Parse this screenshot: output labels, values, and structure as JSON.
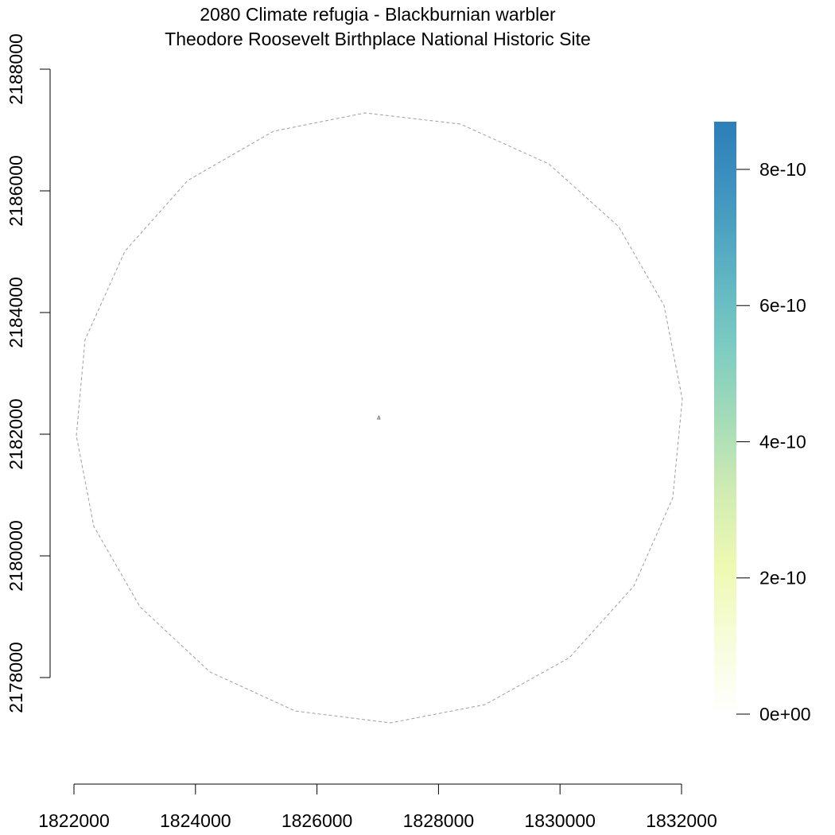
{
  "title": {
    "line1": "2080 Climate refugia - Blackburnian warbler",
    "line2": "Theodore Roosevelt Birthplace National Historic Site"
  },
  "x_axis": {
    "ticks": [
      1822000,
      1824000,
      1826000,
      1828000,
      1830000,
      1832000
    ],
    "tick_labels": [
      "1822000",
      "1824000",
      "1826000",
      "1828000",
      "1830000",
      "1832000"
    ]
  },
  "y_axis": {
    "ticks": [
      2178000,
      2180000,
      2182000,
      2184000,
      2186000,
      2188000
    ],
    "tick_labels": [
      "2178000",
      "2180000",
      "2182000",
      "2184000",
      "2186000",
      "2188000"
    ]
  },
  "legend": {
    "ticks": [
      0,
      2e-10,
      4e-10,
      6e-10,
      8e-10
    ],
    "tick_labels": [
      "0e+00",
      "2e-10",
      "4e-10",
      "6e-10",
      "8e-10"
    ],
    "range": [
      0,
      8.7e-10
    ],
    "colors": [
      "#ffffff",
      "#f7fcda",
      "#eef9b2",
      "#d0ecb3",
      "#a3dbb8",
      "#7bcbc2",
      "#5cb2c2",
      "#4195c0",
      "#2c7fb8"
    ]
  },
  "colors": {
    "boundary": "#9e9e9e",
    "axis": "#000000"
  }
}
